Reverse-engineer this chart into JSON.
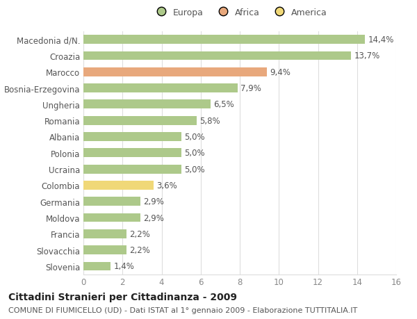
{
  "countries": [
    "Slovenia",
    "Slovacchia",
    "Francia",
    "Moldova",
    "Germania",
    "Colombia",
    "Ucraina",
    "Polonia",
    "Albania",
    "Romania",
    "Ungheria",
    "Bosnia-Erzegovina",
    "Marocco",
    "Croazia",
    "Macedonia d/N."
  ],
  "values": [
    1.4,
    2.2,
    2.2,
    2.9,
    2.9,
    3.6,
    5.0,
    5.0,
    5.0,
    5.8,
    6.5,
    7.9,
    9.4,
    13.7,
    14.4
  ],
  "labels": [
    "1,4%",
    "2,2%",
    "2,2%",
    "2,9%",
    "2,9%",
    "3,6%",
    "5,0%",
    "5,0%",
    "5,0%",
    "5,8%",
    "6,5%",
    "7,9%",
    "9,4%",
    "13,7%",
    "14,4%"
  ],
  "categories": [
    "Europa",
    "Europa",
    "Europa",
    "Europa",
    "Europa",
    "America",
    "Europa",
    "Europa",
    "Europa",
    "Europa",
    "Europa",
    "Europa",
    "Africa",
    "Europa",
    "Europa"
  ],
  "colors": {
    "Europa": "#adc98a",
    "Africa": "#e8a87c",
    "America": "#f0d878"
  },
  "xlim": [
    0,
    16
  ],
  "xticks": [
    0,
    2,
    4,
    6,
    8,
    10,
    12,
    14,
    16
  ],
  "background_color": "#ffffff",
  "grid_color": "#dddddd",
  "bar_height": 0.55,
  "label_fontsize": 8.5,
  "ytick_fontsize": 8.5,
  "xtick_fontsize": 8.5,
  "title1": "Cittadini Stranieri per Cittadinanza - 2009",
  "title2": "COMUNE DI FIUMICELLO (UD) - Dati ISTAT al 1° gennaio 2009 - Elaborazione TUTTITALIA.IT",
  "title1_fontsize": 10,
  "title2_fontsize": 8,
  "legend_entries": [
    "Europa",
    "Africa",
    "America"
  ],
  "legend_colors": [
    "#adc98a",
    "#e8a87c",
    "#f0d878"
  ]
}
